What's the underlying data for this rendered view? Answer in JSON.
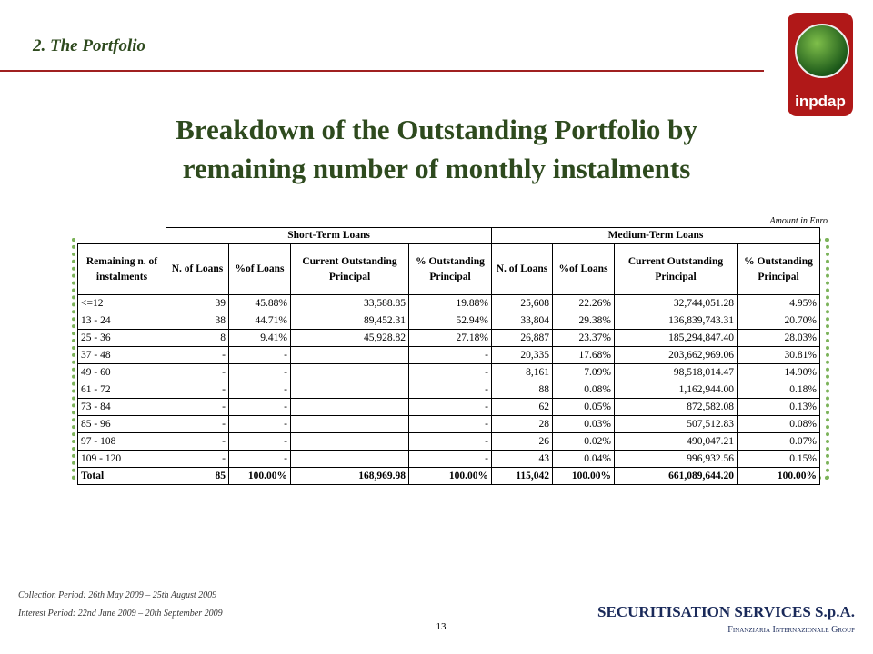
{
  "header": {
    "section": "2. The Portfolio",
    "logo": "inpdap"
  },
  "title": [
    "Breakdown of the Outstanding Portfolio  by",
    "remaining number of monthly instalments"
  ],
  "table": {
    "note": "Amount in Euro",
    "groups": [
      "Short-Term Loans",
      "Medium-Term Loans"
    ],
    "columns": [
      "Remaining n. of instalments",
      "N. of Loans",
      "%of Loans",
      "Current Outstanding Principal",
      "% Outstanding Principal",
      "N. of Loans",
      "%of Loans",
      "Current Outstanding Principal",
      "% Outstanding Principal"
    ],
    "rows": [
      [
        "<=12",
        "39",
        "45.88%",
        "33,588.85",
        "19.88%",
        "25,608",
        "22.26%",
        "32,744,051.28",
        "4.95%"
      ],
      [
        "13 - 24",
        "38",
        "44.71%",
        "89,452.31",
        "52.94%",
        "33,804",
        "29.38%",
        "136,839,743.31",
        "20.70%"
      ],
      [
        "25 - 36",
        "8",
        "9.41%",
        "45,928.82",
        "27.18%",
        "26,887",
        "23.37%",
        "185,294,847.40",
        "28.03%"
      ],
      [
        "37 - 48",
        "-",
        "-",
        "",
        "-",
        "20,335",
        "17.68%",
        "203,662,969.06",
        "30.81%"
      ],
      [
        "49 - 60",
        "-",
        "-",
        "",
        "-",
        "8,161",
        "7.09%",
        "98,518,014.47",
        "14.90%"
      ],
      [
        "61 - 72",
        "-",
        "-",
        "",
        "-",
        "88",
        "0.08%",
        "1,162,944.00",
        "0.18%"
      ],
      [
        "73 - 84",
        "-",
        "-",
        "",
        "-",
        "62",
        "0.05%",
        "872,582.08",
        "0.13%"
      ],
      [
        "85 - 96",
        "-",
        "-",
        "",
        "-",
        "28",
        "0.03%",
        "507,512.83",
        "0.08%"
      ],
      [
        "97 - 108",
        "-",
        "-",
        "",
        "-",
        "26",
        "0.02%",
        "490,047.21",
        "0.07%"
      ],
      [
        "109 - 120",
        "-",
        "-",
        "",
        "-",
        "43",
        "0.04%",
        "996,932.56",
        "0.15%"
      ]
    ],
    "total": [
      "Total",
      "85",
      "100.00%",
      "168,969.98",
      "100.00%",
      "115,042",
      "100.00%",
      "661,089,644.20",
      "100.00%"
    ]
  },
  "footer": {
    "collection": "Collection Period: 26th May 2009 – 25th August 2009",
    "interest": "Interest Period: 22nd June 2009 – 20th September 2009",
    "page": "13",
    "company": "SECURITISATION SERVICES S.p.A.",
    "group": "Finanziaria Internazionale Group"
  }
}
